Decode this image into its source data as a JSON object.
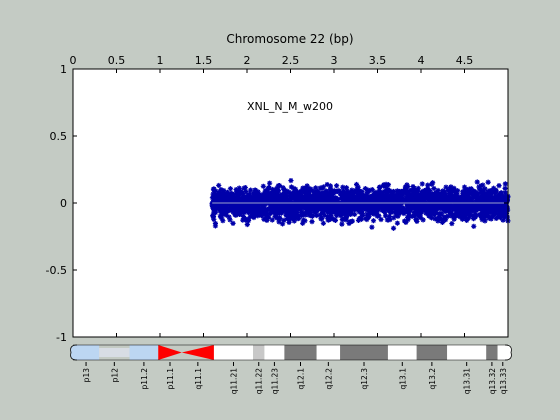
{
  "chart_data": {
    "type": "scatter",
    "title": "Chromosome 22 (bp)",
    "annotation": "XNL_N_M_w200",
    "xlim": [
      0,
      5
    ],
    "ylim": [
      -1,
      1
    ],
    "x_ticks": [
      "0",
      "0.5",
      "1",
      "1.5",
      "2",
      "2.5",
      "3",
      "3.5",
      "4",
      "4.5"
    ],
    "y_ticks": [
      "1",
      "0.5",
      "0",
      "-0.5",
      "-1"
    ],
    "grid": false,
    "series": [
      {
        "color": "#0000aa",
        "marker": "asterisk",
        "x_range": [
          1.6,
          5.0
        ],
        "y_center": 0.0,
        "y_typical_range": [
          -0.25,
          0.25
        ],
        "y_extremes": [
          -0.36,
          0.36
        ],
        "approx_points": 2500
      }
    ],
    "zero_line_color": "#9aa0cc",
    "ideogram": {
      "bands": [
        {
          "label": "p13",
          "start": 0.0,
          "end": 0.3,
          "type": "stalk"
        },
        {
          "label": "p12",
          "start": 0.3,
          "end": 0.65,
          "type": "stalk"
        },
        {
          "label": "p11.2",
          "start": 0.65,
          "end": 0.98,
          "type": "stalk"
        },
        {
          "label": "p11.1",
          "start": 0.98,
          "end": 1.25,
          "type": "centromere"
        },
        {
          "label": "q11.1",
          "start": 1.25,
          "end": 1.62,
          "type": "centromere"
        },
        {
          "label": "q11.21",
          "start": 1.62,
          "end": 2.07,
          "type": "gneg"
        },
        {
          "label": "q11.22",
          "start": 2.07,
          "end": 2.2,
          "type": "gpos25"
        },
        {
          "label": "q11.23",
          "start": 2.2,
          "end": 2.43,
          "type": "gneg"
        },
        {
          "label": "q12.1",
          "start": 2.43,
          "end": 2.8,
          "type": "gpos"
        },
        {
          "label": "q12.2",
          "start": 2.8,
          "end": 3.07,
          "type": "gneg"
        },
        {
          "label": "q12.3",
          "start": 3.07,
          "end": 3.62,
          "type": "gpos"
        },
        {
          "label": "q13.1",
          "start": 3.62,
          "end": 3.95,
          "type": "gneg"
        },
        {
          "label": "q13.2",
          "start": 3.95,
          "end": 4.3,
          "type": "gpos"
        },
        {
          "label": "q13.31",
          "start": 4.3,
          "end": 4.75,
          "type": "gneg"
        },
        {
          "label": "q13.32",
          "start": 4.75,
          "end": 4.88,
          "type": "gpos"
        },
        {
          "label": "q13.33",
          "start": 4.88,
          "end": 5.0,
          "type": "gneg"
        }
      ],
      "colors": {
        "stalk": "#bcd6f2",
        "centromere": "#ff0000",
        "gneg": "#ffffff",
        "gpos25": "#c8c8c8",
        "gpos": "#7a7a7a"
      }
    }
  }
}
